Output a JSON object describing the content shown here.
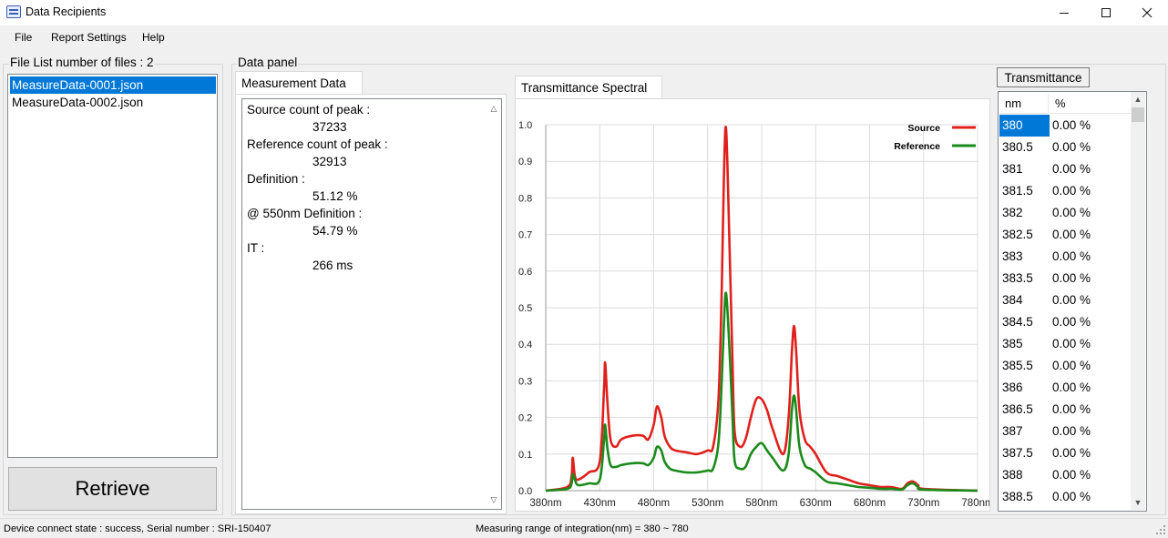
{
  "window": {
    "title": "Data Recipients",
    "icon": "app-logo-icon"
  },
  "menu": [
    "File",
    "Report Settings",
    "Help"
  ],
  "file_list": {
    "title": "File List number of files : 2",
    "items": [
      "MeasureData-0001.json",
      "MeasureData-0002.json"
    ],
    "selected_index": 0
  },
  "retrieve_label": "Retrieve",
  "data_panel": {
    "title": "Data panel",
    "tab": "Measurement Data",
    "lines": [
      {
        "label": "Source count of peak :",
        "value": "37233"
      },
      {
        "label": "Reference count of peak :",
        "value": "32913"
      },
      {
        "label": "Definition :",
        "value": "51.12 %"
      },
      {
        "label": "@ 550nm Definition :",
        "value": "54.79 %"
      },
      {
        "label": "IT :",
        "value": "266 ms"
      }
    ]
  },
  "chart_tab": "Transmittance Spectral",
  "chart_data": {
    "type": "line",
    "title": "",
    "xlabel": "",
    "ylabel": "",
    "xlim": [
      380,
      780
    ],
    "ylim": [
      0,
      1.0
    ],
    "x_ticks": [
      "380nm",
      "430nm",
      "480nm",
      "530nm",
      "580nm",
      "630nm",
      "680nm",
      "730nm",
      "780nm"
    ],
    "y_ticks": [
      "0.0",
      "0.1",
      "0.2",
      "0.3",
      "0.4",
      "0.5",
      "0.6",
      "0.7",
      "0.8",
      "0.9",
      "1.0"
    ],
    "grid": true,
    "legend_position": "top-right",
    "x": [
      380,
      400,
      404,
      405,
      407,
      410,
      420,
      430,
      434,
      435,
      437,
      440,
      445,
      450,
      460,
      470,
      475,
      480,
      483,
      487,
      490,
      495,
      500,
      510,
      520,
      530,
      535,
      540,
      543,
      545,
      547,
      550,
      553,
      555,
      560,
      565,
      570,
      575,
      580,
      585,
      590,
      600,
      605,
      608,
      610,
      612,
      615,
      620,
      625,
      630,
      640,
      650,
      660,
      670,
      680,
      690,
      700,
      710,
      715,
      720,
      725,
      730,
      780
    ],
    "series": [
      {
        "name": "Source",
        "color": "#e0201c",
        "values": [
          0.0,
          0.01,
          0.04,
          0.09,
          0.04,
          0.03,
          0.05,
          0.08,
          0.28,
          0.35,
          0.25,
          0.14,
          0.12,
          0.14,
          0.15,
          0.15,
          0.14,
          0.18,
          0.23,
          0.2,
          0.15,
          0.12,
          0.11,
          0.105,
          0.1,
          0.11,
          0.12,
          0.25,
          0.55,
          0.85,
          0.99,
          0.7,
          0.35,
          0.16,
          0.12,
          0.14,
          0.2,
          0.25,
          0.25,
          0.22,
          0.17,
          0.1,
          0.2,
          0.38,
          0.45,
          0.38,
          0.22,
          0.14,
          0.12,
          0.1,
          0.05,
          0.04,
          0.03,
          0.02,
          0.015,
          0.01,
          0.01,
          0.005,
          0.02,
          0.025,
          0.015,
          0.005,
          0.0
        ]
      },
      {
        "name": "Reference",
        "color": "#1a8a1a",
        "values": [
          0.0,
          0.005,
          0.02,
          0.045,
          0.03,
          0.015,
          0.02,
          0.03,
          0.14,
          0.18,
          0.12,
          0.07,
          0.065,
          0.07,
          0.075,
          0.075,
          0.07,
          0.09,
          0.12,
          0.11,
          0.08,
          0.06,
          0.055,
          0.05,
          0.05,
          0.055,
          0.06,
          0.13,
          0.3,
          0.45,
          0.54,
          0.4,
          0.2,
          0.08,
          0.06,
          0.065,
          0.1,
          0.12,
          0.13,
          0.11,
          0.09,
          0.055,
          0.1,
          0.22,
          0.26,
          0.22,
          0.12,
          0.07,
          0.06,
          0.05,
          0.025,
          0.02,
          0.015,
          0.01,
          0.008,
          0.005,
          0.005,
          0.003,
          0.015,
          0.02,
          0.01,
          0.003,
          0.0
        ]
      }
    ]
  },
  "transmittance": {
    "button": "Transmittance",
    "columns": [
      "nm",
      "%"
    ],
    "rows": [
      [
        "380",
        "0.00 %"
      ],
      [
        "380.5",
        "0.00 %"
      ],
      [
        "381",
        "0.00 %"
      ],
      [
        "381.5",
        "0.00 %"
      ],
      [
        "382",
        "0.00 %"
      ],
      [
        "382.5",
        "0.00 %"
      ],
      [
        "383",
        "0.00 %"
      ],
      [
        "383.5",
        "0.00 %"
      ],
      [
        "384",
        "0.00 %"
      ],
      [
        "384.5",
        "0.00 %"
      ],
      [
        "385",
        "0.00 %"
      ],
      [
        "385.5",
        "0.00 %"
      ],
      [
        "386",
        "0.00 %"
      ],
      [
        "386.5",
        "0.00 %"
      ],
      [
        "387",
        "0.00 %"
      ],
      [
        "387.5",
        "0.00 %"
      ],
      [
        "388",
        "0.00 %"
      ],
      [
        "388.5",
        "0.00 %"
      ]
    ],
    "selected_index": 0
  },
  "status": {
    "left": "Device connect state : success, Serial number : SRI-150407",
    "center": "Measuring range of integration(nm) = 380 ~ 780"
  }
}
